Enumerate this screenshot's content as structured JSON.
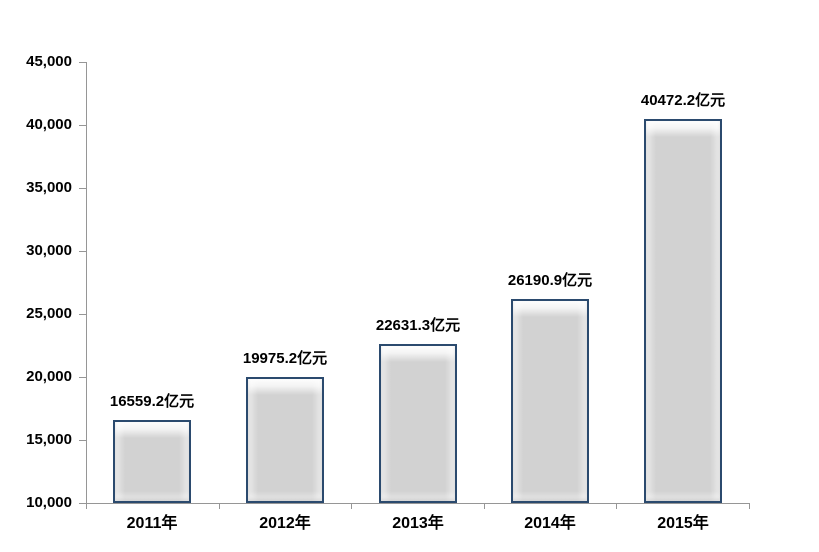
{
  "chart_data": {
    "type": "bar",
    "categories": [
      "2011年",
      "2012年",
      "2013年",
      "2014年",
      "2015年"
    ],
    "values": [
      16559.2,
      19975.2,
      22631.3,
      26190.9,
      40472.2
    ],
    "bar_labels": [
      "16559.2亿元",
      "19975.2亿元",
      "22631.3亿元",
      "26190.9亿元",
      "40472.2亿元"
    ],
    "title": "",
    "xlabel": "",
    "ylabel": "",
    "ylim": [
      10000,
      45000
    ],
    "ytick_step": 5000,
    "ytick_labels": [
      "10,000",
      "15,000",
      "20,000",
      "25,000",
      "30,000",
      "35,000",
      "40,000",
      "45,000"
    ],
    "grid": false,
    "legend": false
  },
  "colors": {
    "background": "#ffffff",
    "bar_fill": "#d2d2d2",
    "bar_border": "#2b4a6e",
    "axis_line": "#969696",
    "text": "#000000"
  }
}
